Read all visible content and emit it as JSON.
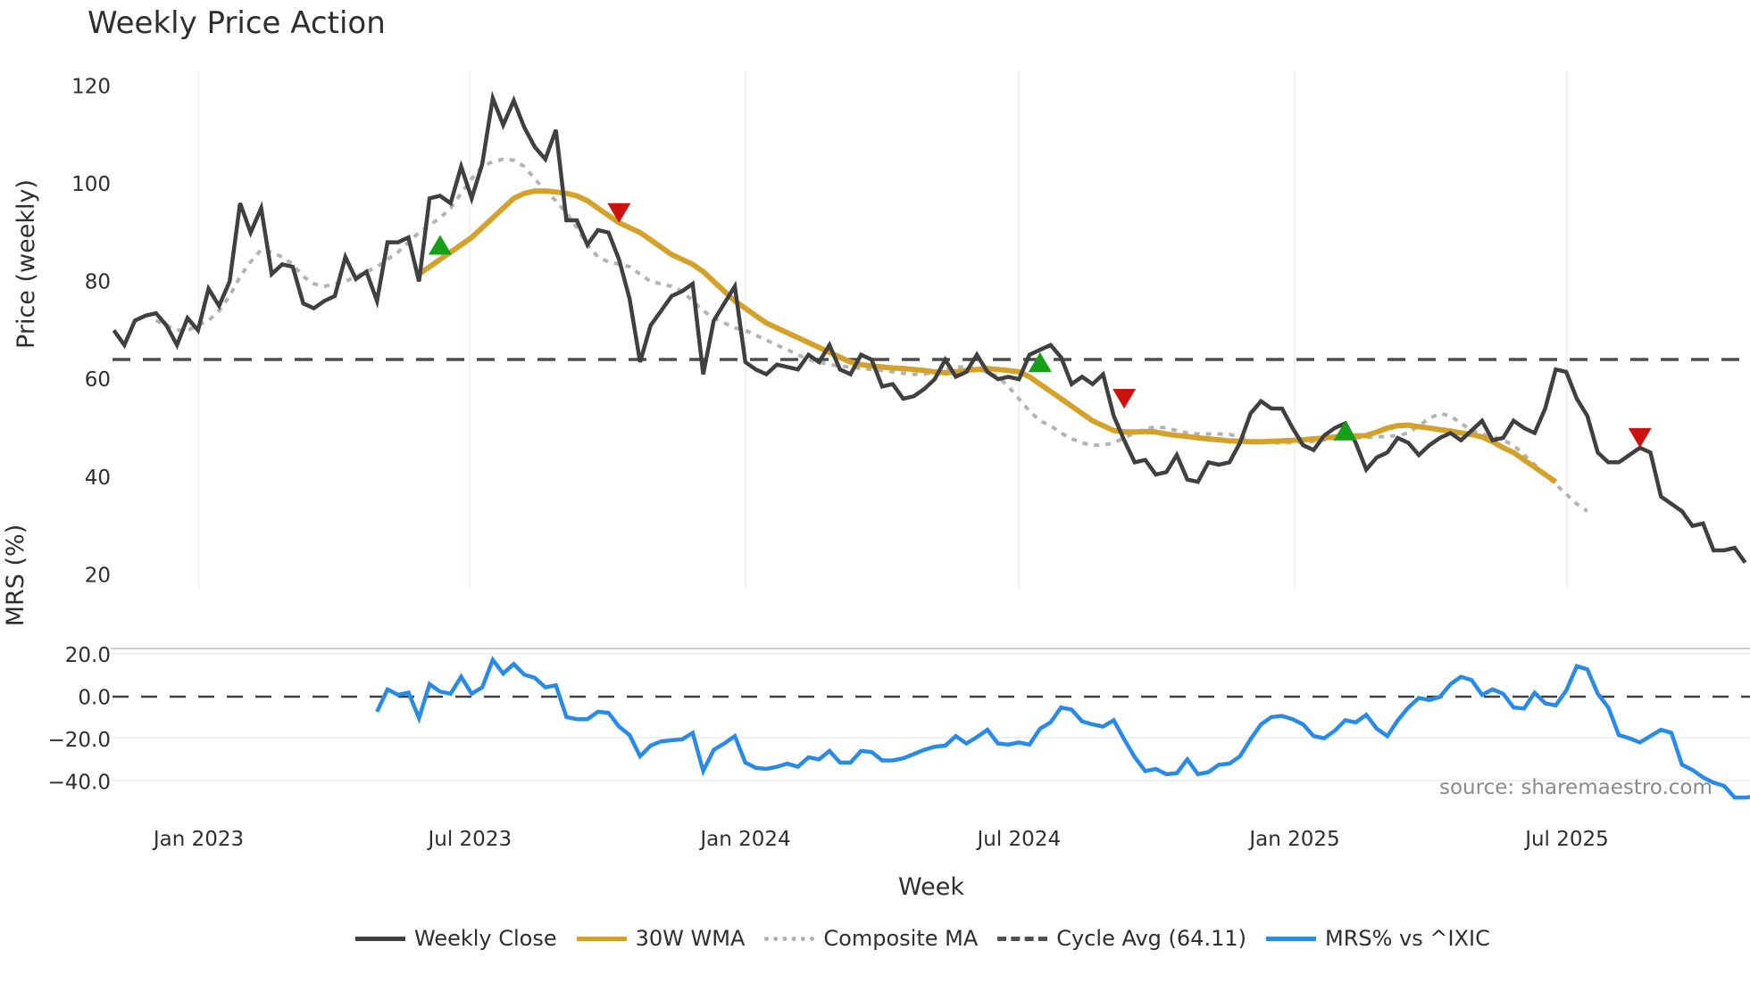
{
  "chart_data": [
    {
      "type": "line",
      "title": "Weekly Price Action",
      "xlabel": "Week",
      "ylabel": "Price (weekly)",
      "ylim": [
        18,
        123
      ],
      "yticks": [
        20,
        40,
        60,
        80,
        100,
        120
      ],
      "xticks": [
        "Jan 2023",
        "Jul 2023",
        "Jan 2024",
        "Jul 2024",
        "Jan 2025",
        "Jul 2025"
      ],
      "grid": "vertical-only",
      "legend_position": "bottom",
      "x_start": "2022-11 (approx.)",
      "x_step": "1 week",
      "series": [
        {
          "name": "Weekly Close",
          "color": "#404040",
          "values": [
            70,
            67,
            72,
            73,
            73.5,
            71,
            67,
            72.5,
            70,
            78.5,
            75,
            80,
            96,
            90,
            95,
            81.5,
            83.5,
            83,
            75.5,
            74.5,
            76,
            77,
            85,
            80.5,
            82,
            76,
            88,
            88,
            89,
            80,
            97,
            97.5,
            96,
            103.5,
            97,
            104,
            117.5,
            112,
            117,
            111.5,
            107.5,
            105,
            111,
            92.5,
            92.5,
            87.5,
            90.5,
            90,
            84.5,
            76.5,
            63.5,
            71,
            74,
            77,
            78,
            79.5,
            61,
            72,
            75.5,
            79,
            63.5,
            62,
            61,
            63,
            62.5,
            62,
            65,
            63.5,
            67,
            62,
            61,
            65,
            64,
            58.5,
            59,
            56,
            56.5,
            58,
            60,
            64,
            60.5,
            61.5,
            65,
            61.5,
            60,
            60.5,
            60,
            65,
            66,
            67,
            64.5,
            59,
            60.5,
            59,
            61,
            52.5,
            47.5,
            43,
            43.5,
            40.5,
            41,
            44.5,
            39.5,
            39,
            43,
            42.5,
            43,
            47,
            53,
            55.5,
            54,
            54,
            50,
            46.5,
            45.5,
            48.5,
            50,
            51,
            47,
            41.5,
            44,
            45,
            48,
            47,
            44.5,
            46.5,
            48,
            49,
            47.5,
            49.5,
            51.5,
            47.5,
            48,
            51.5,
            50,
            49,
            54,
            62,
            61.5,
            56,
            52.5,
            45,
            43,
            43,
            44.5,
            46,
            45,
            36,
            34.5,
            33,
            30,
            30.5,
            25,
            25,
            25.5,
            22.5
          ]
        },
        {
          "name": "30W WMA",
          "color": "#D4A22A",
          "values_note": "starts at week ~29",
          "values": [
            81.5,
            83,
            84.5,
            86,
            87.5,
            89,
            91,
            93,
            95,
            97,
            98,
            98.5,
            98.5,
            98.3,
            98,
            97.5,
            96.5,
            95,
            93.5,
            92,
            91,
            90,
            88.5,
            87,
            85.5,
            84.5,
            83.5,
            82,
            80,
            78,
            76,
            74.5,
            73,
            71.5,
            70.5,
            69.5,
            68.5,
            67.5,
            66.5,
            65.5,
            64.5,
            63.5,
            63,
            62.7,
            62.5,
            62.3,
            62.2,
            62,
            61.8,
            61.5,
            61.3,
            61.5,
            61.8,
            62,
            62.2,
            62,
            61.8,
            61.5,
            60.5,
            59,
            57.5,
            56,
            54.5,
            53,
            51.5,
            50.5,
            49.5,
            49.2,
            49.2,
            49.3,
            49.2,
            48.8,
            48.5,
            48.3,
            48,
            47.8,
            47.6,
            47.4,
            47.3,
            47.2,
            47.2,
            47.3,
            47.4,
            47.5,
            47.6,
            47.8,
            48,
            48.2,
            48.3,
            48.4,
            48.5,
            49.2,
            50,
            50.5,
            50.6,
            50.3,
            50,
            49.7,
            49.4,
            49,
            48.7,
            48.2,
            47.2,
            46,
            45,
            43.5,
            42,
            40.5,
            39
          ]
        },
        {
          "name": "Composite MA",
          "color": "#B0B0B0",
          "values_note": "starts at week ~5",
          "values": [
            72,
            71,
            70,
            70,
            71,
            72,
            74,
            77,
            81,
            84,
            86.5,
            86,
            85,
            83.5,
            81,
            79.5,
            79,
            79.5,
            80,
            81,
            82,
            83,
            84.5,
            86,
            88,
            90,
            91.5,
            93,
            95,
            98,
            101,
            103.5,
            104.5,
            105,
            104.8,
            103.5,
            101,
            98.5,
            96.5,
            94,
            91,
            87.5,
            85,
            84,
            83.5,
            83,
            81.5,
            80,
            79.5,
            79,
            78,
            76,
            74,
            72.5,
            71.5,
            70.5,
            70,
            69,
            68,
            67,
            66,
            65,
            64,
            63.5,
            63,
            62.7,
            62.5,
            62.2,
            62,
            61.8,
            61.5,
            61.2,
            61,
            61,
            61.5,
            62,
            62.5,
            62.5,
            62,
            61.5,
            60.5,
            58.5,
            56,
            53.5,
            51.5,
            50.5,
            49,
            47.8,
            47,
            46.5,
            46.5,
            47,
            48,
            49,
            49.8,
            50.3,
            50,
            49.5,
            49,
            48.8,
            48.8,
            48.8,
            48.7,
            48.3,
            47.5,
            47.2,
            47,
            47,
            47,
            47.1,
            47.3,
            47.6,
            47.8,
            48,
            48,
            48.1,
            48.2,
            48.3,
            48.5,
            49,
            50.5,
            52,
            53,
            52.5,
            51,
            49.5,
            48.8,
            48.3,
            47.5,
            46.5,
            44.5,
            42.5,
            40.5,
            38.5,
            36.5,
            34.5,
            33
          ]
        },
        {
          "name": "Cycle Avg (64.11)",
          "color": "#505050",
          "style": "dashed",
          "values": [
            64.11
          ]
        }
      ],
      "markers": [
        {
          "type": "buy",
          "shape": "triangle-up",
          "color": "#17A017",
          "x_approx": "Jun 2023",
          "y": 87.5
        },
        {
          "type": "sell",
          "shape": "triangle-down",
          "color": "#CC1111",
          "x_approx": "Oct 2023",
          "y": 94
        },
        {
          "type": "buy",
          "shape": "triangle-up",
          "color": "#17A017",
          "x_approx": "Jul 2024",
          "y": 63.5
        },
        {
          "type": "sell",
          "shape": "triangle-down",
          "color": "#CC1111",
          "x_approx": "Sep 2024",
          "y": 56
        },
        {
          "type": "buy",
          "shape": "triangle-up",
          "color": "#17A017",
          "x_approx": "Feb 2025",
          "y": 49.5
        },
        {
          "type": "sell",
          "shape": "triangle-down",
          "color": "#CC1111",
          "x_approx": "Oct 2025",
          "y": 48
        }
      ]
    },
    {
      "type": "line",
      "title": "",
      "xlabel": "Week",
      "ylabel": "MRS (%)",
      "ylim": [
        -55,
        22
      ],
      "yticks": [
        20.0,
        0.0,
        -20.0,
        -40.0
      ],
      "series": [
        {
          "name": "MRS% vs ^IXIC",
          "color": "#2A8BE6",
          "values_note": "starts around May 2023",
          "values": [
            -7,
            3.5,
            1,
            2,
            -10,
            6,
            2.5,
            1.5,
            9.5,
            1.5,
            4.5,
            17.5,
            11,
            15.5,
            10.5,
            9,
            4.5,
            5.5,
            -9.5,
            -10.5,
            -10.5,
            -7,
            -7.5,
            -14,
            -18,
            -28,
            -23,
            -21,
            -20.5,
            -20,
            -17,
            -35,
            -25,
            -22,
            -18.5,
            -31,
            -33.5,
            -34,
            -33,
            -31.5,
            -33,
            -28.5,
            -29.5,
            -25.5,
            -31,
            -31,
            -25.5,
            -26,
            -30,
            -30,
            -29,
            -27,
            -25,
            -23.5,
            -23,
            -18.5,
            -22,
            -19,
            -15.5,
            -22,
            -22.5,
            -21.5,
            -22.5,
            -15,
            -12,
            -5,
            -6,
            -11.5,
            -13,
            -14,
            -11,
            -20,
            -28.5,
            -35,
            -34,
            -36.5,
            -36,
            -29.5,
            -36.5,
            -35.5,
            -32,
            -31.5,
            -28,
            -20,
            -13,
            -9.5,
            -9,
            -10.5,
            -13,
            -18.5,
            -19.5,
            -16,
            -11,
            -12,
            -8.5,
            -15,
            -18.5,
            -11,
            -5,
            -0.5,
            -1.5,
            0,
            6,
            9.5,
            8,
            1,
            3.5,
            1.5,
            -5,
            -5.5,
            2,
            -3,
            -4,
            3,
            14.5,
            13,
            1.5,
            -5,
            -18,
            -19.5,
            -21.5,
            -18.5,
            -15.5,
            -17,
            -32,
            -34.5,
            -38,
            -40.5,
            -42,
            -47.5,
            -47.5,
            -47,
            -52
          ]
        }
      ],
      "reference_line": {
        "name": "zero",
        "value": 0.0,
        "style": "dashed"
      }
    }
  ],
  "title": "Weekly Price Action",
  "axes": {
    "price_ylabel": "Price (weekly)",
    "mrs_ylabel": "MRS (%)",
    "xlabel": "Week",
    "price_ticks": [
      "120",
      "100",
      "80",
      "60",
      "40",
      "20"
    ],
    "mrs_ticks": [
      "20.0",
      "0.0",
      "−20.0",
      "−40.0"
    ],
    "x_ticks": [
      "Jan 2023",
      "Jul 2023",
      "Jan 2024",
      "Jul 2024",
      "Jan 2025",
      "Jul 2025"
    ]
  },
  "source_note": "source: sharemaestro.com",
  "legend": [
    {
      "label": "Weekly Close",
      "color": "#404040",
      "style": "solid"
    },
    {
      "label": "30W WMA",
      "color": "#D4A22A",
      "style": "solid"
    },
    {
      "label": "Composite MA",
      "color": "#B0B0B0",
      "style": "dotted"
    },
    {
      "label": "Cycle Avg (64.11)",
      "color": "#505050",
      "style": "dashed"
    },
    {
      "label": "MRS% vs ^IXIC",
      "color": "#2A8BE6",
      "style": "solid"
    }
  ]
}
